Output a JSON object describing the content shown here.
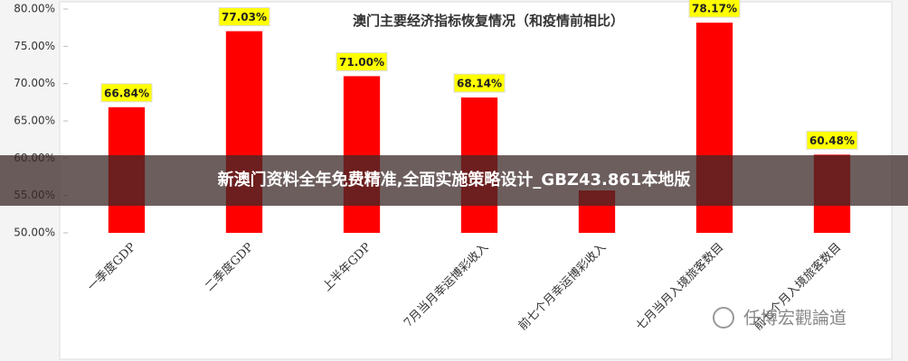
{
  "chart_data": {
    "type": "bar",
    "title": "澳门主要经济指标恢复情况（和疫情前相比）",
    "categories": [
      "一季度GDP",
      "二季度GDP",
      "上半年GDP",
      "7月当月幸运博彩收入",
      "前七个月幸运博彩收入",
      "七月当月入境旅客数目",
      "前七个月入境旅客数目"
    ],
    "values": [
      66.84,
      77.03,
      71.0,
      68.14,
      55.68,
      78.17,
      60.48
    ],
    "value_labels": [
      "66.84%",
      "77.03%",
      "71.00%",
      "68.14%",
      null,
      "78.17%",
      "60.48%"
    ],
    "color": "#ff0000",
    "ylim": [
      50,
      80
    ],
    "yticks": [
      {
        "value": 50,
        "label": "50.00%"
      },
      {
        "value": 55,
        "label": "55.00%"
      },
      {
        "value": 60,
        "label": "60.00%"
      },
      {
        "value": 65,
        "label": "65.00%"
      },
      {
        "value": 70,
        "label": "70.00%"
      },
      {
        "value": 75,
        "label": "75.00%"
      },
      {
        "value": 80,
        "label": "80.00%"
      }
    ],
    "grid": false
  },
  "banner": "新澳门资料全年免费精准,全面实施策略设计_GBZ43.861本地版",
  "watermark": "任博宏觀論道"
}
